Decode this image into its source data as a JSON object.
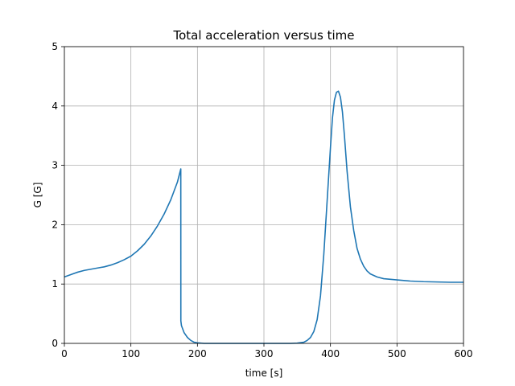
{
  "chart_data": {
    "type": "line",
    "title": "Total acceleration versus time",
    "xlabel": "time [s]",
    "ylabel": "G [G]",
    "xlim": [
      0,
      600
    ],
    "ylim": [
      0,
      5
    ],
    "xticks": [
      0,
      100,
      200,
      300,
      400,
      500,
      600
    ],
    "yticks": [
      0,
      1,
      2,
      3,
      4,
      5
    ],
    "xtick_labels": [
      "0",
      "100",
      "200",
      "300",
      "400",
      "500",
      "600"
    ],
    "ytick_labels": [
      "0",
      "1",
      "2",
      "3",
      "4",
      "5"
    ],
    "grid": true,
    "line_color": "#1f77b4",
    "series": [
      {
        "x": [
          0,
          10,
          20,
          30,
          40,
          50,
          60,
          70,
          80,
          90,
          100,
          110,
          120,
          130,
          140,
          150,
          160,
          170,
          175,
          175.1,
          176,
          180,
          185,
          190,
          195,
          200,
          210,
          220,
          240,
          260,
          280,
          300,
          320,
          340,
          350,
          360,
          365,
          370,
          375,
          380,
          385,
          390,
          395,
          400,
          403,
          406,
          409,
          412,
          415,
          418,
          421,
          425,
          430,
          435,
          440,
          445,
          450,
          455,
          460,
          470,
          480,
          490,
          500,
          520,
          540,
          560,
          580,
          600
        ],
        "y": [
          1.12,
          1.16,
          1.2,
          1.23,
          1.25,
          1.27,
          1.29,
          1.32,
          1.36,
          1.41,
          1.47,
          1.56,
          1.67,
          1.81,
          1.98,
          2.18,
          2.42,
          2.72,
          2.94,
          0.38,
          0.3,
          0.18,
          0.1,
          0.05,
          0.02,
          0.01,
          0.0,
          0.0,
          0.0,
          0.0,
          0.0,
          0.0,
          0.0,
          0.0,
          0.005,
          0.02,
          0.05,
          0.1,
          0.2,
          0.4,
          0.8,
          1.5,
          2.4,
          3.3,
          3.8,
          4.1,
          4.23,
          4.25,
          4.15,
          3.9,
          3.5,
          2.9,
          2.3,
          1.9,
          1.6,
          1.42,
          1.3,
          1.22,
          1.17,
          1.12,
          1.09,
          1.08,
          1.07,
          1.05,
          1.04,
          1.035,
          1.03,
          1.03
        ]
      }
    ]
  }
}
